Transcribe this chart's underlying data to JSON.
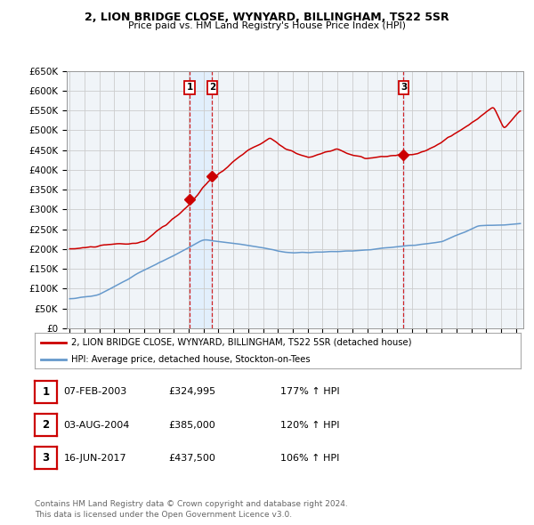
{
  "title_line1": "2, LION BRIDGE CLOSE, WYNYARD, BILLINGHAM, TS22 5SR",
  "title_line2": "Price paid vs. HM Land Registry's House Price Index (HPI)",
  "ylim": [
    0,
    650000
  ],
  "yticks": [
    0,
    50000,
    100000,
    150000,
    200000,
    250000,
    300000,
    350000,
    400000,
    450000,
    500000,
    550000,
    600000,
    650000
  ],
  "ytick_labels": [
    "£0",
    "£50K",
    "£100K",
    "£150K",
    "£200K",
    "£250K",
    "£300K",
    "£350K",
    "£400K",
    "£450K",
    "£500K",
    "£550K",
    "£600K",
    "£650K"
  ],
  "background_color": "#f0f4f8",
  "plot_bg_color": "#f0f4f8",
  "grid_color": "#cccccc",
  "red_line_color": "#cc0000",
  "blue_line_color": "#6699cc",
  "highlight_color": "#ddeeff",
  "sale_points": [
    {
      "date_num": 2003.08,
      "price": 324995,
      "label": "1"
    },
    {
      "date_num": 2004.58,
      "price": 385000,
      "label": "2"
    },
    {
      "date_num": 2017.45,
      "price": 437500,
      "label": "3"
    }
  ],
  "legend_red_label": "2, LION BRIDGE CLOSE, WYNYARD, BILLINGHAM, TS22 5SR (detached house)",
  "legend_blue_label": "HPI: Average price, detached house, Stockton-on-Tees",
  "table_rows": [
    {
      "num": "1",
      "date": "07-FEB-2003",
      "price": "£324,995",
      "pct": "177% ↑ HPI"
    },
    {
      "num": "2",
      "date": "03-AUG-2004",
      "price": "£385,000",
      "pct": "120% ↑ HPI"
    },
    {
      "num": "3",
      "date": "16-JUN-2017",
      "price": "£437,500",
      "pct": "106% ↑ HPI"
    }
  ],
  "footnote": "Contains HM Land Registry data © Crown copyright and database right 2024.\nThis data is licensed under the Open Government Licence v3.0."
}
